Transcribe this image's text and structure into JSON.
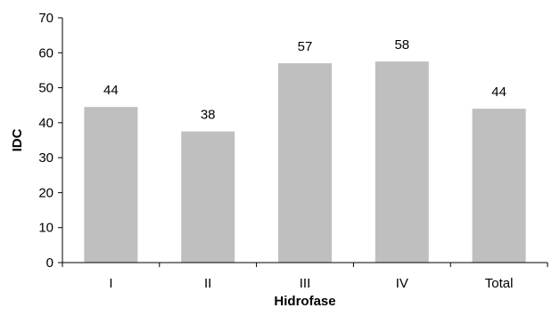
{
  "chart_data": {
    "type": "bar",
    "categories": [
      "I",
      "II",
      "III",
      "IV",
      "Total"
    ],
    "values": [
      44.5,
      37.5,
      57,
      57.5,
      44
    ],
    "data_labels": [
      "44",
      "38",
      "57",
      "58",
      "44"
    ],
    "xlabel": "Hidrofase",
    "ylabel": "IDC",
    "ylim": [
      0,
      70
    ],
    "yticks": [
      0,
      10,
      20,
      30,
      40,
      50,
      60,
      70
    ],
    "ytick_labels": [
      "0",
      "10",
      "20",
      "30",
      "40",
      "50",
      "60",
      "70"
    ],
    "grid": false,
    "legend": "none",
    "bar_color": "#bfbfbf",
    "axis_color": "#000000"
  }
}
